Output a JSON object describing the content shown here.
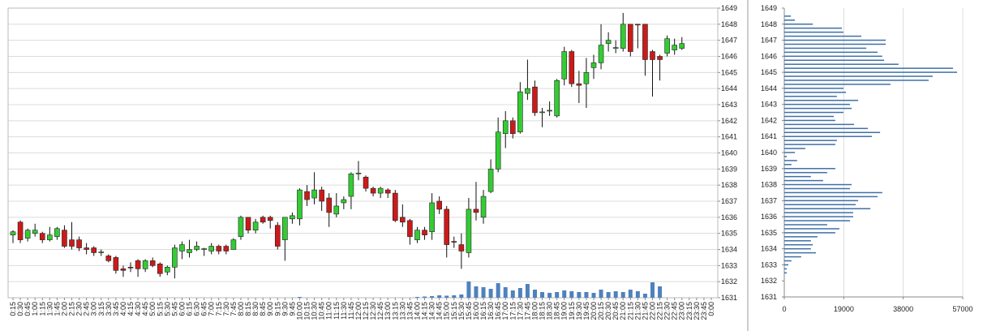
{
  "chart_data": [
    {
      "type": "candlestick",
      "categories": [
        "0:15",
        "0:30",
        "0:45",
        "1:00",
        "1:15",
        "1:30",
        "1:45",
        "2:00",
        "2:15",
        "2:30",
        "2:45",
        "3:00",
        "3:15",
        "3:30",
        "3:45",
        "4:00",
        "4:15",
        "4:30",
        "4:45",
        "5:00",
        "5:15",
        "5:30",
        "5:45",
        "6:00",
        "6:15",
        "6:30",
        "6:45",
        "7:00",
        "7:15",
        "7:30",
        "7:45",
        "8:00",
        "8:15",
        "8:30",
        "8:45",
        "9:00",
        "9:15",
        "9:30",
        "9:45",
        "10:00",
        "10:15",
        "10:30",
        "10:45",
        "11:00",
        "11:15",
        "11:30",
        "11:45",
        "12:00",
        "12:15",
        "12:30",
        "12:45",
        "13:00",
        "13:15",
        "13:30",
        "13:45",
        "14:00",
        "14:15",
        "14:30",
        "14:45",
        "15:00",
        "15:15",
        "15:30",
        "15:45",
        "16:00",
        "16:15",
        "16:30",
        "16:45",
        "17:00",
        "17:15",
        "17:30",
        "17:45",
        "18:00",
        "18:15",
        "18:30",
        "18:45",
        "19:00",
        "19:15",
        "19:30",
        "19:45",
        "20:00",
        "20:15",
        "20:30",
        "20:45",
        "21:00",
        "21:15",
        "21:30",
        "21:45",
        "22:00",
        "22:15",
        "22:30",
        "22:45",
        "23:00",
        "23:15",
        "23:30",
        "23:45",
        "0:00"
      ],
      "open": [
        1634.9,
        1635.7,
        1634.7,
        1635.0,
        1635.0,
        1634.6,
        1634.8,
        1635.2,
        1634.6,
        1634.6,
        1634.1,
        1634.1,
        1633.8,
        1633.6,
        1633.5,
        1632.8,
        1632.9,
        1633.3,
        1632.8,
        1633.3,
        1633.1,
        1632.6,
        1632.9,
        1633.9,
        1633.8,
        1634.0,
        1634.0,
        1633.9,
        1634.2,
        1634.2,
        1634.0,
        1634.8,
        1636.0,
        1635.2,
        1636.0,
        1636.0,
        1635.5,
        1634.6,
        1635.9,
        1635.9,
        1637.6,
        1637.2,
        1637.7,
        1637.2,
        1636.2,
        1636.9,
        1637.3,
        1638.7,
        1638.5,
        1637.8,
        1637.5,
        1637.7,
        1637.5,
        1636.0,
        1635.8,
        1634.6,
        1635.2,
        1635.1,
        1637.0,
        1636.5,
        1634.5,
        1634.3,
        1633.8,
        1636.5,
        1636.0,
        1637.6,
        1639.0,
        1641.2,
        1642.0,
        1641.3,
        1643.7,
        1644.1,
        1642.5,
        1642.6,
        1642.3,
        1644.6,
        1646.3,
        1644.3,
        1644.3,
        1645.3,
        1645.6,
        1646.8,
        1646.5,
        1646.5,
        1648.0,
        1648.0,
        1648.0,
        1646.3,
        1646.0,
        1646.2,
        1646.4,
        1646.5,
        null,
        null,
        null,
        null
      ],
      "high": [
        1635.2,
        1635.8,
        1635.3,
        1635.6,
        1635.1,
        1635.4,
        1635.4,
        1635.5,
        1635.7,
        1634.8,
        1634.4,
        1634.2,
        1634.0,
        1633.7,
        1633.6,
        1633.0,
        1633.2,
        1633.4,
        1633.4,
        1633.5,
        1633.2,
        1633.0,
        1634.3,
        1634.5,
        1634.6,
        1634.5,
        1634.1,
        1634.4,
        1634.3,
        1634.3,
        1634.7,
        1636.1,
        1636.0,
        1635.9,
        1636.1,
        1636.1,
        1635.7,
        1636.0,
        1636.3,
        1637.8,
        1638.0,
        1638.8,
        1637.9,
        1637.5,
        1637.5,
        1637.3,
        1638.8,
        1639.5,
        1638.6,
        1637.9,
        1637.9,
        1637.8,
        1637.7,
        1636.8,
        1635.9,
        1635.4,
        1635.4,
        1637.5,
        1637.3,
        1636.7,
        1634.8,
        1635.0,
        1637.2,
        1638.2,
        1637.7,
        1639.6,
        1642.2,
        1642.6,
        1642.2,
        1644.4,
        1645.8,
        1644.5,
        1642.8,
        1643.2,
        1644.6,
        1646.6,
        1646.4,
        1645.1,
        1645.9,
        1646.1,
        1648.0,
        1647.5,
        1647.0,
        1648.7,
        1648.0,
        1648.0,
        1648.0,
        1646.4,
        1646.1,
        1647.3,
        1647.1,
        1647.2,
        null,
        null,
        null,
        null
      ],
      "low": [
        1634.4,
        1634.4,
        1634.5,
        1634.8,
        1634.4,
        1634.5,
        1634.6,
        1634.1,
        1634.0,
        1633.9,
        1633.7,
        1633.6,
        1633.6,
        1633.2,
        1632.5,
        1632.3,
        1632.6,
        1632.3,
        1632.6,
        1632.9,
        1632.3,
        1632.4,
        1632.2,
        1633.4,
        1633.5,
        1633.9,
        1633.6,
        1633.7,
        1633.7,
        1633.7,
        1634.0,
        1634.6,
        1635.0,
        1635.0,
        1635.6,
        1635.3,
        1634.0,
        1633.3,
        1635.6,
        1635.5,
        1636.7,
        1636.8,
        1636.4,
        1635.4,
        1636.0,
        1636.5,
        1636.5,
        1638.3,
        1637.6,
        1637.3,
        1637.2,
        1637.2,
        1635.7,
        1635.4,
        1634.3,
        1634.4,
        1634.6,
        1634.6,
        1636.2,
        1633.5,
        1634.1,
        1632.8,
        1633.5,
        1635.8,
        1635.6,
        1637.5,
        1638.8,
        1640.3,
        1640.9,
        1641.2,
        1643.3,
        1642.3,
        1641.6,
        1642.3,
        1642.2,
        1644.2,
        1644.1,
        1643.1,
        1642.8,
        1644.6,
        1645.2,
        1646.3,
        1646.2,
        1646.3,
        1646.0,
        1646.5,
        1644.8,
        1643.5,
        1644.5,
        1646.0,
        1646.1,
        1646.4,
        null,
        null,
        null,
        null
      ],
      "close": [
        1635.1,
        1634.6,
        1635.2,
        1635.2,
        1634.6,
        1634.9,
        1635.3,
        1634.2,
        1634.2,
        1634.1,
        1634.0,
        1633.8,
        1633.85,
        1633.3,
        1632.7,
        1632.7,
        1632.85,
        1632.8,
        1633.3,
        1633.0,
        1632.5,
        1632.9,
        1634.1,
        1634.3,
        1634.0,
        1634.2,
        1634.05,
        1634.2,
        1633.9,
        1633.9,
        1634.6,
        1636.0,
        1635.2,
        1635.7,
        1635.7,
        1635.8,
        1634.2,
        1636.0,
        1636.1,
        1637.7,
        1637.1,
        1637.7,
        1637.0,
        1636.3,
        1636.7,
        1637.1,
        1638.7,
        1638.75,
        1637.8,
        1637.5,
        1637.8,
        1637.5,
        1635.8,
        1635.7,
        1634.8,
        1635.2,
        1634.9,
        1636.9,
        1636.5,
        1634.3,
        1634.45,
        1633.9,
        1636.5,
        1636.3,
        1637.3,
        1639.0,
        1641.3,
        1642.0,
        1641.2,
        1643.8,
        1644.0,
        1642.5,
        1642.55,
        1642.65,
        1644.5,
        1646.3,
        1644.3,
        1644.2,
        1645.0,
        1645.6,
        1646.7,
        1647.0,
        1646.55,
        1648.0,
        1646.3,
        1647.95,
        1645.8,
        1645.8,
        1645.8,
        1647.1,
        1646.7,
        1646.8,
        null,
        null,
        null,
        null
      ],
      "volume": [
        0,
        0,
        0,
        0,
        0,
        0,
        0,
        0,
        0,
        0,
        0,
        0,
        0,
        0,
        0,
        0,
        0,
        0,
        0,
        0,
        0,
        0,
        0,
        0,
        0,
        0,
        0,
        0,
        0,
        0,
        0,
        0,
        0,
        0,
        0,
        0,
        0,
        0,
        0,
        100,
        0,
        0,
        0,
        0,
        0,
        0,
        0,
        0,
        0,
        0,
        0,
        0,
        0,
        0,
        0,
        100,
        150,
        200,
        300,
        250,
        300,
        400,
        2000,
        1400,
        1300,
        1100,
        1800,
        1300,
        900,
        1200,
        1700,
        1000,
        700,
        600,
        700,
        900,
        800,
        700,
        700,
        600,
        1000,
        700,
        800,
        700,
        1000,
        800,
        500,
        1900,
        1400,
        0,
        0,
        0,
        null,
        null,
        null,
        null
      ],
      "ylim": [
        1631,
        1649
      ],
      "yticks": [
        1631,
        1632,
        1633,
        1634,
        1635,
        1636,
        1637,
        1638,
        1639,
        1640,
        1641,
        1642,
        1643,
        1644,
        1645,
        1646,
        1647,
        1648,
        1649
      ],
      "grid": true,
      "up_color": "#33cc33",
      "down_color": "#cc1a1a",
      "volume_color": "#4f81bd"
    },
    {
      "type": "barh",
      "y": [
        1648.5,
        1648.25,
        1648.0,
        1647.75,
        1647.5,
        1647.25,
        1647.0,
        1646.75,
        1646.5,
        1646.25,
        1646.0,
        1645.75,
        1645.5,
        1645.25,
        1645.0,
        1644.75,
        1644.5,
        1644.25,
        1644.0,
        1643.75,
        1643.5,
        1643.25,
        1643.0,
        1642.75,
        1642.5,
        1642.25,
        1642.0,
        1641.75,
        1641.5,
        1641.25,
        1641.0,
        1640.75,
        1640.5,
        1640.25,
        1640.0,
        1639.75,
        1639.5,
        1639.25,
        1639.0,
        1638.75,
        1638.5,
        1638.25,
        1638.0,
        1637.75,
        1637.5,
        1637.25,
        1637.0,
        1636.75,
        1636.5,
        1636.25,
        1636.0,
        1635.75,
        1635.5,
        1635.25,
        1635.0,
        1634.75,
        1634.5,
        1634.25,
        1634.0,
        1633.75,
        1633.5,
        1633.25,
        1633.0,
        1632.75,
        1632.5
      ],
      "values": [
        2100,
        3400,
        9100,
        18400,
        18900,
        24600,
        32400,
        32400,
        26200,
        29800,
        31300,
        31900,
        36500,
        53900,
        55200,
        47400,
        46100,
        33900,
        18900,
        19700,
        16800,
        23600,
        21000,
        21500,
        18900,
        15800,
        16300,
        22300,
        26700,
        30600,
        28000,
        16800,
        16300,
        6700,
        3400,
        800,
        4100,
        2300,
        16300,
        13700,
        8500,
        12400,
        21500,
        21000,
        31300,
        29800,
        23600,
        22800,
        27500,
        22000,
        22000,
        21000,
        13700,
        17600,
        16300,
        10600,
        8500,
        9100,
        8500,
        10100,
        5400,
        2300,
        1300,
        800,
        800
      ],
      "xlim": [
        0,
        57000
      ],
      "xticks": [
        0,
        19000,
        38000,
        57000
      ],
      "ylim": [
        1631,
        1649
      ],
      "yticks": [
        1631,
        1632,
        1633,
        1634,
        1635,
        1636,
        1637,
        1638,
        1639,
        1640,
        1641,
        1642,
        1643,
        1644,
        1645,
        1646,
        1647,
        1648,
        1649
      ],
      "grid": true,
      "color": "#3f70a8"
    }
  ]
}
